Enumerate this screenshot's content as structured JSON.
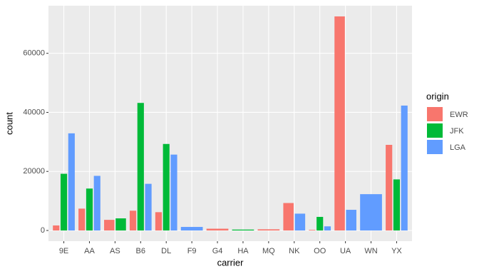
{
  "chart_data": {
    "type": "bar",
    "x_label": "carrier",
    "y_label": "count",
    "legend_title": "origin",
    "categories": [
      "9E",
      "AA",
      "AS",
      "B6",
      "DL",
      "F9",
      "G4",
      "HA",
      "MQ",
      "NK",
      "OO",
      "UA",
      "WN",
      "YX"
    ],
    "series": [
      {
        "name": "EWR",
        "color": "#F8766D",
        "values": [
          1700,
          7400,
          3600,
          6700,
          6200,
          null,
          600,
          null,
          400,
          9300,
          200,
          72500,
          null,
          29000
        ]
      },
      {
        "name": "JFK",
        "color": "#00BA38",
        "values": [
          19200,
          14200,
          4100,
          43200,
          29300,
          null,
          null,
          300,
          null,
          null,
          4600,
          null,
          null,
          17300
        ]
      },
      {
        "name": "LGA",
        "color": "#619CFF",
        "values": [
          32900,
          18500,
          null,
          15800,
          25700,
          1200,
          null,
          null,
          null,
          5700,
          1400,
          7000,
          12300,
          42300
        ]
      }
    ],
    "ylim": [
      -3625,
      76125
    ],
    "yticks": [
      0,
      20000,
      40000,
      60000
    ],
    "grid": true,
    "legend": "right"
  }
}
